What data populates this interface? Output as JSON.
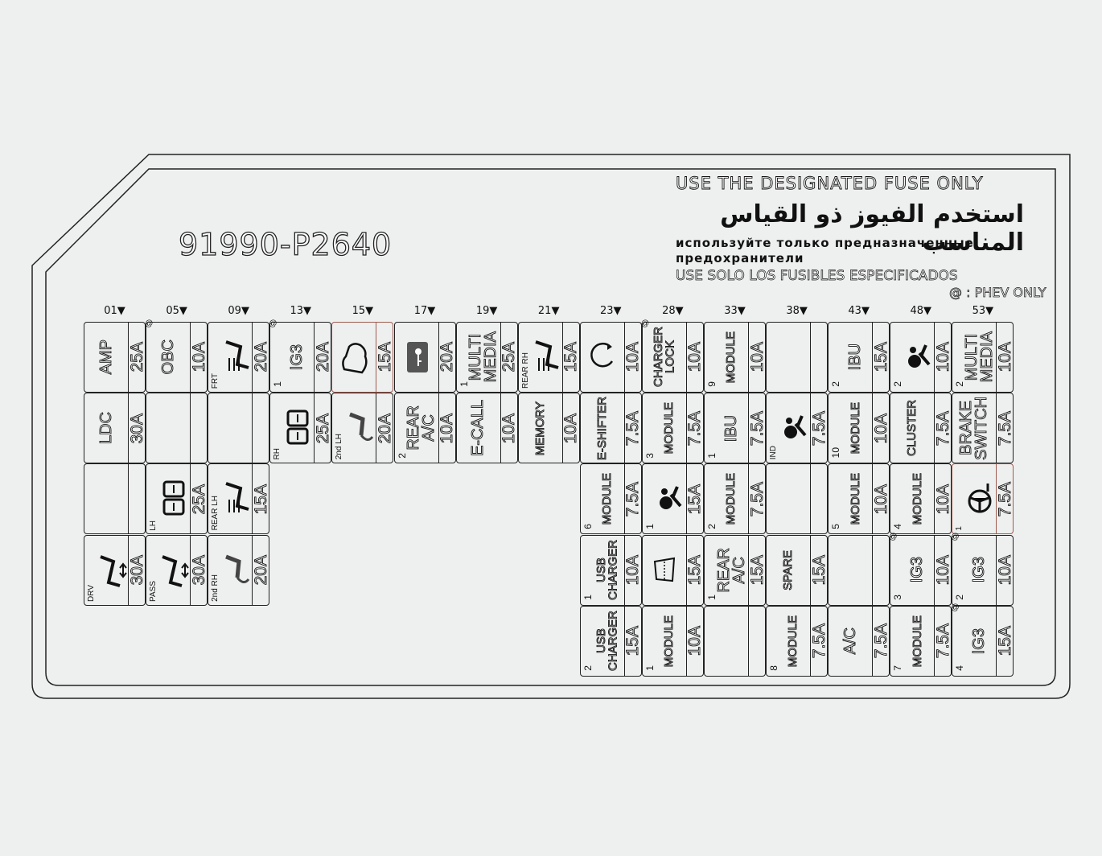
{
  "part_number": "91990-P2640",
  "warnings": {
    "english": "USE THE DESIGNATED FUSE ONLY",
    "arabic": "استخدم الفيوز ذو القياس المناسب",
    "russian_line1": "используйте только предназначенные",
    "russian_line2": "предохранители",
    "spanish": "USE SOLO LOS FUSIBLES ESPECIFICADOS"
  },
  "phev_note": "@ : PHEV ONLY",
  "colors": {
    "background": "#eef0ef",
    "line": "#222222",
    "highlight": "#a05a50"
  },
  "columns": [
    {
      "num": "01▼",
      "cells": [
        {
          "label": "AMP",
          "amp": "25A"
        },
        {
          "label": "LDC",
          "amp": "30A"
        },
        {
          "label": "",
          "amp": ""
        },
        {
          "icon": "power-seat-icon",
          "sub": "DRV",
          "amp": "30A"
        }
      ]
    },
    {
      "num": "05▼",
      "cells": [
        {
          "label": "OBC",
          "amp": "10A",
          "phev": "@"
        },
        {
          "label": "",
          "amp": ""
        },
        {
          "icon": "power-window-icon",
          "sub": "LH",
          "amp": "25A"
        },
        {
          "icon": "power-seat-icon",
          "sub": "PASS",
          "amp": "30A"
        }
      ]
    },
    {
      "num": "09▼",
      "cells": [
        {
          "icon": "seat-heater-icon",
          "sub": "FRT",
          "amp": "20A"
        },
        {
          "label": "",
          "amp": ""
        },
        {
          "icon": "seat-heater-icon",
          "sub": "REAR LH",
          "amp": "15A"
        },
        {
          "icon": "seat-fold-icon",
          "sub": "2nd RH",
          "amp": "20A"
        }
      ]
    },
    {
      "num": "13▼",
      "cells": [
        {
          "label": "IG3",
          "num": "1",
          "amp": "20A",
          "phev": "@"
        },
        {
          "icon": "power-window-icon",
          "sub": "RH",
          "amp": "25A"
        }
      ]
    },
    {
      "num": "15▼",
      "cells": [
        {
          "icon": "car-icon",
          "amp": "15A",
          "highlight": true
        },
        {
          "icon": "seat-fold-icon",
          "sub": "2nd LH",
          "amp": "20A"
        }
      ]
    },
    {
      "num": "17▼",
      "cells": [
        {
          "icon": "door-key-icon",
          "amp": "20A"
        },
        {
          "label": "REAR\nA/C",
          "num": "2",
          "amp": "10A"
        }
      ]
    },
    {
      "num": "19▼",
      "cells": [
        {
          "label": "MULTI\nMEDIA",
          "num": "1",
          "amp": "25A"
        },
        {
          "label": "E-CALL",
          "amp": "10A"
        }
      ]
    },
    {
      "num": "21▼",
      "cells": [
        {
          "icon": "seat-heater-icon",
          "sub": "REAR RH",
          "amp": "15A"
        },
        {
          "label": "MEMORY",
          "amp": "10A",
          "small": true
        }
      ]
    },
    {
      "num": "23▼",
      "cells": [
        {
          "icon": "circular-arrow-icon",
          "amp": "10A"
        },
        {
          "label": "E-SHIFTER",
          "amp": "7.5A",
          "small": true
        },
        {
          "label": "MODULE",
          "num": "6",
          "amp": "7.5A",
          "small": true
        },
        {
          "label": "USB\nCHARGER",
          "num": "1",
          "amp": "10A",
          "small": true
        },
        {
          "label": "USB\nCHARGER",
          "num": "2",
          "amp": "15A",
          "small": true
        }
      ]
    },
    {
      "num": "28▼",
      "cells": [
        {
          "label": "CHARGER\nLOCK",
          "amp": "10A",
          "phev": "@",
          "small": true
        },
        {
          "label": "MODULE",
          "num": "3",
          "amp": "7.5A",
          "small": true
        },
        {
          "icon": "airbag-icon",
          "num": "1",
          "amp": "15A"
        },
        {
          "icon": "windshield-wiper-icon",
          "amp": "15A"
        },
        {
          "label": "MODULE",
          "num": "1",
          "amp": "10A",
          "small": true
        }
      ]
    },
    {
      "num": "33▼",
      "cells": [
        {
          "label": "MODULE",
          "num": "9",
          "amp": "10A",
          "small": true
        },
        {
          "label": "IBU",
          "num": "1",
          "amp": "7.5A"
        },
        {
          "label": "MODULE",
          "num": "2",
          "amp": "7.5A",
          "small": true
        },
        {
          "label": "REAR\nA/C",
          "num": "1",
          "amp": "15A"
        },
        {
          "label": "",
          "amp": ""
        }
      ]
    },
    {
      "num": "38▼",
      "cells": [
        {
          "label": "",
          "amp": ""
        },
        {
          "icon": "airbag-icon",
          "sub": "IND",
          "amp": "7.5A"
        },
        {
          "label": "",
          "amp": ""
        },
        {
          "label": "SPARE",
          "amp": "15A",
          "small": true
        },
        {
          "label": "MODULE",
          "num": "8",
          "amp": "7.5A",
          "small": true
        }
      ]
    },
    {
      "num": "43▼",
      "cells": [
        {
          "label": "IBU",
          "num": "2",
          "amp": "15A"
        },
        {
          "label": "MODULE",
          "num": "10",
          "amp": "10A",
          "small": true
        },
        {
          "label": "MODULE",
          "num": "5",
          "amp": "10A",
          "small": true
        },
        {
          "label": "",
          "amp": ""
        },
        {
          "label": "A/C",
          "amp": "7.5A"
        }
      ]
    },
    {
      "num": "48▼",
      "cells": [
        {
          "icon": "airbag-icon",
          "num": "2",
          "amp": "10A"
        },
        {
          "label": "CLUSTER",
          "amp": "7.5A",
          "small": true
        },
        {
          "label": "MODULE",
          "num": "4",
          "amp": "10A",
          "small": true
        },
        {
          "label": "IG3",
          "num": "3",
          "amp": "10A",
          "phev": "@"
        },
        {
          "label": "MODULE",
          "num": "7",
          "amp": "7.5A",
          "small": true
        }
      ]
    },
    {
      "num": "53▼",
      "cells": [
        {
          "label": "MULTI\nMEDIA",
          "num": "2",
          "amp": "10A"
        },
        {
          "label": "BRAKE\nSWITCH",
          "amp": "7.5A"
        },
        {
          "icon": "steering-wheel-icon",
          "sub": "1",
          "amp": "7.5A",
          "highlight": true
        },
        {
          "label": "IG3",
          "num": "2",
          "amp": "10A",
          "phev": "@"
        },
        {
          "label": "IG3",
          "num": "4",
          "amp": "15A",
          "phev": "@"
        }
      ]
    }
  ]
}
